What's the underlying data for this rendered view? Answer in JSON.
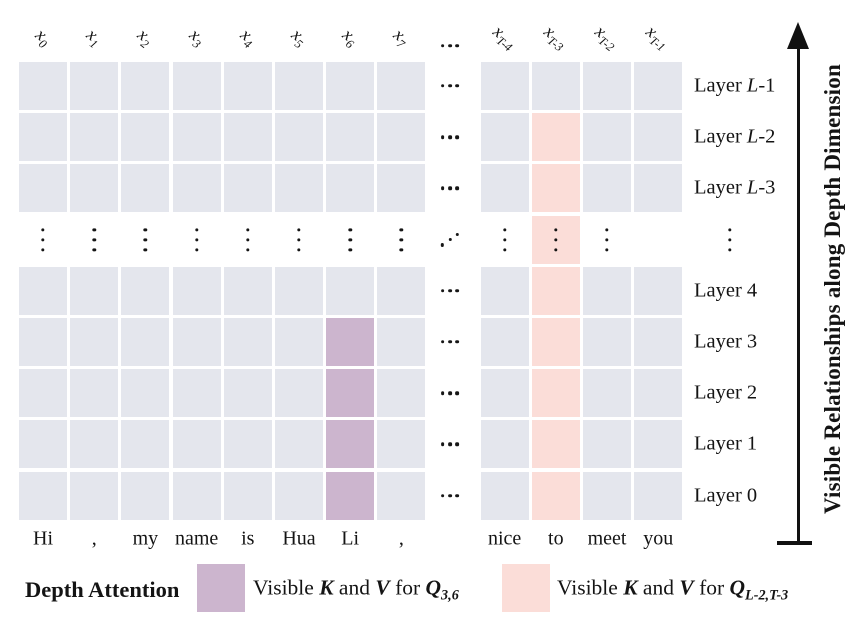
{
  "colors": {
    "cell": "#e4e6ed",
    "purple": "#ccb5ce",
    "pink": "#fbddd8",
    "ink": "#141414",
    "background": "#ffffff"
  },
  "header": {
    "tokens": [
      {
        "main": "x",
        "sub": "0"
      },
      {
        "main": "x",
        "sub": "1"
      },
      {
        "main": "x",
        "sub": "2"
      },
      {
        "main": "x",
        "sub": "3"
      },
      {
        "main": "x",
        "sub": "4"
      },
      {
        "main": "x",
        "sub": "5"
      },
      {
        "main": "x",
        "sub": "6"
      },
      {
        "main": "x",
        "sub": "7"
      },
      {
        "main": "x",
        "sub": "T-4"
      },
      {
        "main": "x",
        "sub": "T-3"
      },
      {
        "main": "x",
        "sub": "T-2"
      },
      {
        "main": "x",
        "sub": "T-1"
      }
    ],
    "ellipsis_between": [
      7,
      8
    ]
  },
  "grid": {
    "rows": [
      {
        "type": "cells",
        "label": {
          "pre": "Layer ",
          "italic": "L",
          "post": "-1"
        }
      },
      {
        "type": "cells",
        "label": {
          "pre": "Layer ",
          "italic": "L",
          "post": "-2"
        }
      },
      {
        "type": "cells",
        "label": {
          "pre": "Layer ",
          "italic": "L",
          "post": "-3"
        }
      },
      {
        "type": "dots",
        "omit_dot_columns": [
          11
        ]
      },
      {
        "type": "cells",
        "label": {
          "pre": "Layer ",
          "italic": "",
          "post": "4"
        }
      },
      {
        "type": "cells",
        "label": {
          "pre": "Layer ",
          "italic": "",
          "post": "3"
        }
      },
      {
        "type": "cells",
        "label": {
          "pre": "Layer ",
          "italic": "",
          "post": "2"
        }
      },
      {
        "type": "cells",
        "label": {
          "pre": "Layer ",
          "italic": "",
          "post": "1"
        }
      },
      {
        "type": "cells",
        "label": {
          "pre": "Layer ",
          "italic": "",
          "post": "0"
        }
      }
    ],
    "highlights": {
      "purple": {
        "column_token_index": 6,
        "row_indices": [
          5,
          6,
          7,
          8
        ]
      },
      "pink": {
        "column_token_index": 9,
        "row_indices": [
          1,
          2,
          3,
          4,
          5,
          6,
          7,
          8
        ]
      }
    }
  },
  "words": [
    "Hi",
    ",",
    "my",
    "name",
    "is",
    "Hua",
    "Li",
    ",",
    "nice",
    "to",
    "meet",
    "you"
  ],
  "axis": {
    "label": "Visible Relationships along Depth Dimension"
  },
  "legend": {
    "title": "Depth Attention",
    "items": [
      {
        "color_key": "purple",
        "visible": "Visible",
        "k": "K",
        "and_word": "and",
        "v": "V",
        "for_word": "for",
        "q": "Q",
        "sub": "3,6"
      },
      {
        "color_key": "pink",
        "visible": "Visible",
        "k": "K",
        "and_word": "and",
        "v": "V",
        "for_word": "for",
        "q": "Q",
        "sub": "L-2,T-3"
      }
    ]
  }
}
